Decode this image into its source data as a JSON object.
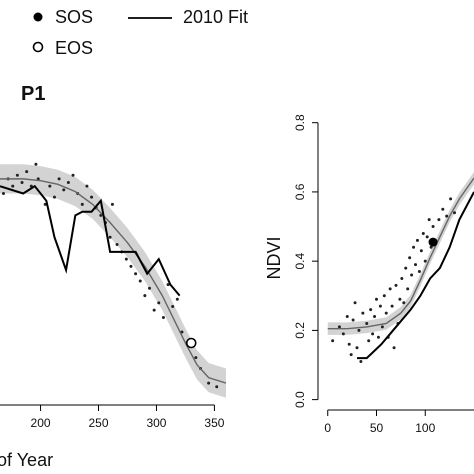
{
  "legend": {
    "sos_label": "SOS",
    "eos_label": "EOS",
    "fit_label": "2010 Fit"
  },
  "chart_data": [
    {
      "type": "scatter",
      "panel_title": "P1",
      "xlabel": "Day of Year",
      "ylabel": "",
      "xlim": [
        165,
        360
      ],
      "ylim": [
        0.0,
        0.85
      ],
      "xticks": [
        200,
        250,
        300,
        350
      ],
      "yticks": [],
      "band_color": "#d3d3d3",
      "points": [
        [
          168,
          0.58
        ],
        [
          172,
          0.62
        ],
        [
          176,
          0.6
        ],
        [
          180,
          0.63
        ],
        [
          184,
          0.61
        ],
        [
          188,
          0.64
        ],
        [
          192,
          0.6
        ],
        [
          196,
          0.66
        ],
        [
          198,
          0.62
        ],
        [
          204,
          0.55
        ],
        [
          208,
          0.6
        ],
        [
          212,
          0.57
        ],
        [
          216,
          0.62
        ],
        [
          220,
          0.59
        ],
        [
          224,
          0.61
        ],
        [
          228,
          0.63
        ],
        [
          232,
          0.58
        ],
        [
          236,
          0.55
        ],
        [
          240,
          0.6
        ],
        [
          244,
          0.57
        ],
        [
          248,
          0.54
        ],
        [
          252,
          0.52
        ],
        [
          256,
          0.5
        ],
        [
          260,
          0.46
        ],
        [
          262,
          0.55
        ],
        [
          266,
          0.44
        ],
        [
          270,
          0.42
        ],
        [
          274,
          0.4
        ],
        [
          278,
          0.38
        ],
        [
          282,
          0.36
        ],
        [
          286,
          0.34
        ],
        [
          290,
          0.3
        ],
        [
          294,
          0.32
        ],
        [
          298,
          0.26
        ],
        [
          302,
          0.28
        ],
        [
          306,
          0.24
        ],
        [
          310,
          0.33
        ],
        [
          314,
          0.27
        ],
        [
          318,
          0.29
        ],
        [
          322,
          0.2
        ],
        [
          326,
          0.17
        ],
        [
          330,
          0.16
        ],
        [
          334,
          0.13
        ],
        [
          338,
          0.1
        ],
        [
          345,
          0.06
        ],
        [
          352,
          0.05
        ]
      ],
      "fit": [
        [
          165,
          0.62
        ],
        [
          185,
          0.62
        ],
        [
          200,
          0.615
        ],
        [
          215,
          0.605
        ],
        [
          230,
          0.585
        ],
        [
          245,
          0.55
        ],
        [
          260,
          0.5
        ],
        [
          275,
          0.445
        ],
        [
          290,
          0.38
        ],
        [
          305,
          0.3
        ],
        [
          315,
          0.235
        ],
        [
          325,
          0.17
        ],
        [
          335,
          0.11
        ],
        [
          345,
          0.075
        ],
        [
          360,
          0.06
        ]
      ],
      "observed_line": [
        [
          165,
          0.6
        ],
        [
          185,
          0.58
        ],
        [
          195,
          0.6
        ],
        [
          205,
          0.56
        ],
        [
          212,
          0.46
        ],
        [
          222,
          0.37
        ],
        [
          230,
          0.52
        ],
        [
          236,
          0.53
        ],
        [
          244,
          0.53
        ],
        [
          252,
          0.56
        ],
        [
          260,
          0.42
        ],
        [
          272,
          0.42
        ],
        [
          282,
          0.42
        ],
        [
          292,
          0.36
        ],
        [
          302,
          0.4
        ],
        [
          312,
          0.33
        ],
        [
          320,
          0.3
        ]
      ],
      "sos": null,
      "eos": [
        330,
        0.17
      ]
    },
    {
      "type": "scatter",
      "panel_title": "",
      "xlabel": "",
      "ylabel": "NDVI",
      "xlim": [
        -10,
        150
      ],
      "ylim": [
        -0.03,
        0.88
      ],
      "xticks": [
        0,
        50,
        100
      ],
      "yticks": [
        0.0,
        0.2,
        0.4,
        0.6,
        0.8
      ],
      "band_color": "#d3d3d3",
      "points": [
        [
          5,
          0.17
        ],
        [
          12,
          0.21
        ],
        [
          16,
          0.19
        ],
        [
          20,
          0.24
        ],
        [
          22,
          0.16
        ],
        [
          24,
          0.13
        ],
        [
          26,
          0.23
        ],
        [
          28,
          0.28
        ],
        [
          30,
          0.15
        ],
        [
          32,
          0.2
        ],
        [
          34,
          0.11
        ],
        [
          36,
          0.25
        ],
        [
          40,
          0.22
        ],
        [
          42,
          0.17
        ],
        [
          44,
          0.26
        ],
        [
          46,
          0.19
        ],
        [
          48,
          0.24
        ],
        [
          50,
          0.29
        ],
        [
          52,
          0.18
        ],
        [
          54,
          0.27
        ],
        [
          56,
          0.21
        ],
        [
          58,
          0.3
        ],
        [
          60,
          0.25
        ],
        [
          62,
          0.18
        ],
        [
          64,
          0.32
        ],
        [
          66,
          0.27
        ],
        [
          68,
          0.15
        ],
        [
          70,
          0.33
        ],
        [
          72,
          0.22
        ],
        [
          74,
          0.29
        ],
        [
          76,
          0.35
        ],
        [
          78,
          0.28
        ],
        [
          80,
          0.38
        ],
        [
          82,
          0.32
        ],
        [
          84,
          0.41
        ],
        [
          86,
          0.36
        ],
        [
          88,
          0.44
        ],
        [
          90,
          0.39
        ],
        [
          92,
          0.46
        ],
        [
          94,
          0.37
        ],
        [
          96,
          0.43
        ],
        [
          98,
          0.48
        ],
        [
          100,
          0.4
        ],
        [
          102,
          0.47
        ],
        [
          104,
          0.52
        ],
        [
          106,
          0.44
        ],
        [
          108,
          0.5
        ],
        [
          110,
          0.45
        ],
        [
          114,
          0.52
        ],
        [
          118,
          0.55
        ],
        [
          122,
          0.53
        ],
        [
          126,
          0.58
        ],
        [
          130,
          0.54
        ]
      ],
      "fit": [
        [
          0,
          0.205
        ],
        [
          20,
          0.205
        ],
        [
          40,
          0.21
        ],
        [
          60,
          0.22
        ],
        [
          75,
          0.25
        ],
        [
          85,
          0.285
        ],
        [
          95,
          0.345
        ],
        [
          105,
          0.41
        ],
        [
          115,
          0.47
        ],
        [
          125,
          0.53
        ],
        [
          135,
          0.58
        ],
        [
          150,
          0.64
        ]
      ],
      "observed_line": [
        [
          30,
          0.12
        ],
        [
          40,
          0.12
        ],
        [
          55,
          0.16
        ],
        [
          70,
          0.21
        ],
        [
          85,
          0.26
        ],
        [
          95,
          0.3
        ],
        [
          105,
          0.35
        ],
        [
          115,
          0.38
        ],
        [
          125,
          0.44
        ],
        [
          135,
          0.52
        ],
        [
          150,
          0.6
        ]
      ],
      "sos": [
        108,
        0.455
      ],
      "eos": null
    }
  ]
}
